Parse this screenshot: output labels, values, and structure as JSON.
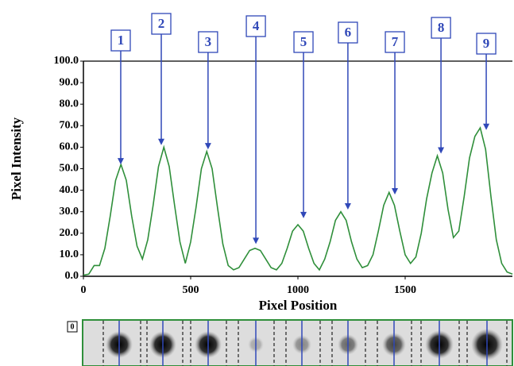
{
  "chart_data": {
    "type": "line",
    "xlabel": "Pixel Position",
    "ylabel": "Pixel Intensity",
    "x": [
      0,
      25,
      50,
      75,
      100,
      125,
      150,
      175,
      200,
      225,
      250,
      275,
      300,
      325,
      350,
      375,
      400,
      425,
      450,
      475,
      500,
      525,
      550,
      575,
      600,
      625,
      650,
      675,
      700,
      725,
      750,
      775,
      800,
      825,
      850,
      875,
      900,
      925,
      950,
      975,
      1000,
      1025,
      1050,
      1075,
      1100,
      1125,
      1150,
      1175,
      1200,
      1225,
      1250,
      1275,
      1300,
      1325,
      1350,
      1375,
      1400,
      1425,
      1450,
      1475,
      1500,
      1525,
      1550,
      1575,
      1600,
      1625,
      1650,
      1675,
      1700,
      1725,
      1750,
      1775,
      1800,
      1825,
      1850,
      1875,
      1900,
      1925,
      1950,
      1975,
      2000
    ],
    "series": [
      {
        "name": "Pixel Intensity",
        "color": "#2f8f3a",
        "values": [
          0.5,
          1,
          5,
          5,
          13,
          28,
          44.6,
          52,
          44.6,
          28,
          14,
          8,
          17,
          33,
          51,
          60,
          51,
          33,
          16,
          6,
          16,
          32,
          50,
          58,
          50,
          32,
          15,
          5,
          3,
          4,
          8,
          12,
          13,
          12,
          8,
          4,
          3,
          6,
          13,
          21,
          24,
          21,
          13,
          6,
          3,
          8,
          16,
          26,
          30,
          26,
          16,
          8,
          4,
          5,
          10,
          21,
          33,
          39,
          33,
          21,
          10,
          6,
          9,
          20,
          36,
          48,
          56,
          48,
          31,
          18,
          21,
          37,
          55,
          65,
          69,
          59,
          37,
          17,
          6,
          2,
          1
        ]
      }
    ],
    "xlim": [
      0,
      2000
    ],
    "xticks": [
      0,
      500,
      1000,
      1500
    ],
    "ylim": [
      0,
      100
    ],
    "yticks": [
      {
        "value": 0,
        "label": "0.0"
      },
      {
        "value": 10,
        "label": "10.0"
      },
      {
        "value": 20,
        "label": "20.0"
      },
      {
        "value": 30,
        "label": "30.0"
      },
      {
        "value": 40,
        "label": "40.0"
      },
      {
        "value": 50,
        "label": "50.0"
      },
      {
        "value": 60,
        "label": "60.0"
      },
      {
        "value": 70,
        "label": "70.0"
      },
      {
        "value": 80,
        "label": "80.0"
      },
      {
        "value": 90,
        "label": "90.0"
      },
      {
        "value": 100,
        "label": "100.0"
      }
    ],
    "grid": false,
    "annotations": [
      {
        "text": "1",
        "x": 174,
        "y": 52
      },
      {
        "text": "2",
        "x": 363,
        "y": 61
      },
      {
        "text": "3",
        "x": 581,
        "y": 59
      },
      {
        "text": "4",
        "x": 804,
        "y": 15
      },
      {
        "text": "5",
        "x": 1026,
        "y": 27
      },
      {
        "text": "6",
        "x": 1233,
        "y": 31
      },
      {
        "text": "7",
        "x": 1452,
        "y": 38
      },
      {
        "text": "8",
        "x": 1667,
        "y": 57
      },
      {
        "text": "9",
        "x": 1878,
        "y": 68
      }
    ],
    "strip_label": "0"
  }
}
